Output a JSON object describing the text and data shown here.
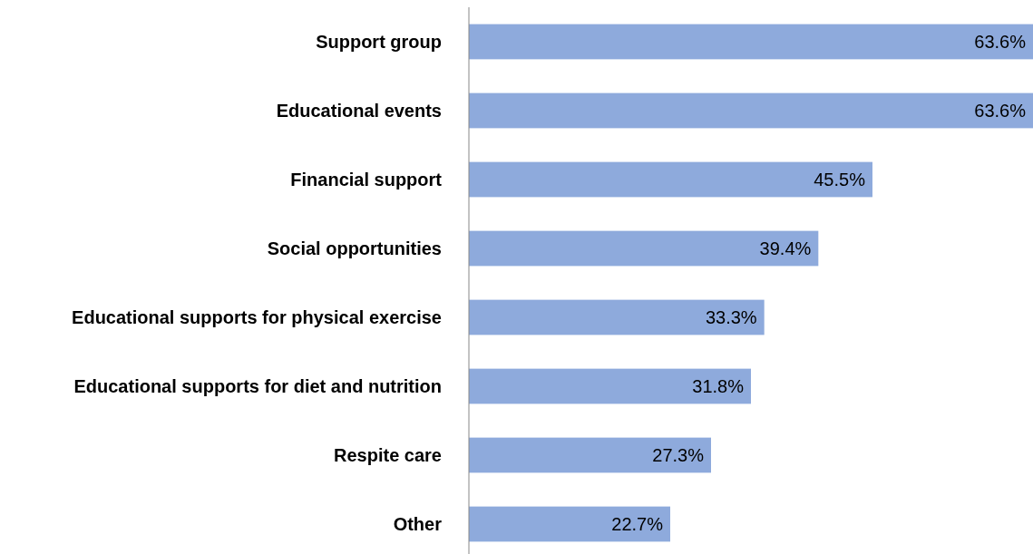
{
  "chart_data": {
    "type": "bar",
    "orientation": "horizontal",
    "categories": [
      "Support group",
      "Educational events",
      "Financial support",
      "Social opportunities",
      "Educational supports for physical exercise",
      "Educational supports for diet and nutrition",
      "Respite care",
      "Other"
    ],
    "values": [
      63.6,
      63.6,
      45.5,
      39.4,
      33.3,
      31.8,
      27.3,
      22.7
    ],
    "value_labels": [
      "63.6%",
      "63.6%",
      "45.5%",
      "39.4%",
      "33.3%",
      "31.8%",
      "27.3%",
      "22.7%"
    ],
    "color": "#8eaadc"
  }
}
